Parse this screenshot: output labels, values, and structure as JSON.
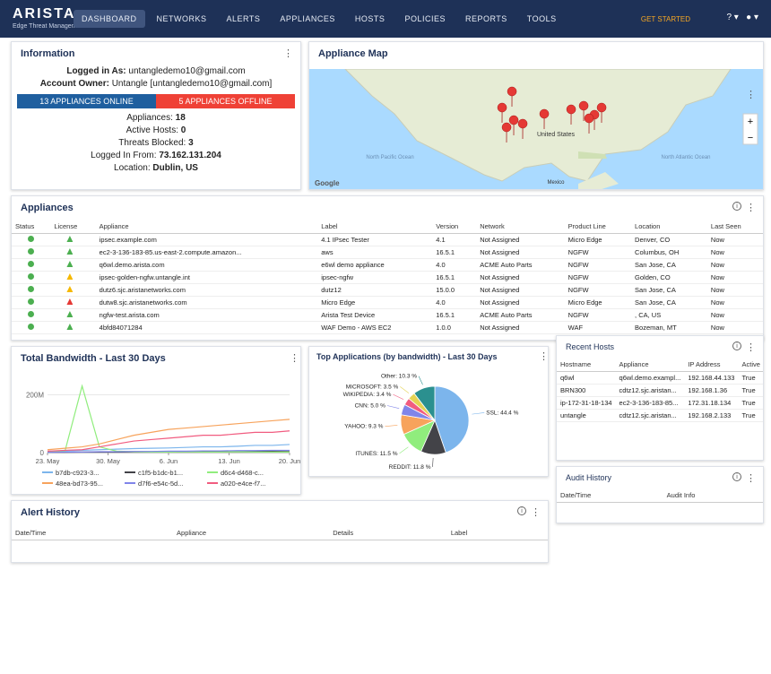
{
  "header": {
    "logo": "ARISTA",
    "tagline": "Edge Threat Management",
    "nav": [
      "DASHBOARD",
      "NETWORKS",
      "ALERTS",
      "APPLIANCES",
      "HOSTS",
      "POLICIES",
      "REPORTS",
      "TOOLS"
    ],
    "get_started": "GET STARTED"
  },
  "information": {
    "title": "Information",
    "logged_in_label": "Logged in As:",
    "logged_in_value": "untangledemo10@gmail.com",
    "owner_label": "Account Owner:",
    "owner_value": "Untangle [untangledemo10@gmail.com]",
    "online": "13 APPLIANCES ONLINE",
    "offline": "5 APPLIANCES OFFLINE",
    "stats": [
      {
        "label": "Appliances:",
        "value": 18
      },
      {
        "label": "Active Hosts:",
        "value": 0
      },
      {
        "label": "Threats Blocked:",
        "value": 3
      },
      {
        "label": "Logged In From:",
        "value": "73.162.131.204"
      },
      {
        "label": "Location:",
        "value": "Dublin, US"
      }
    ]
  },
  "map": {
    "title": "Appliance Map",
    "ocean_west": "North Pacific Ocean",
    "country": "United States",
    "mexico": "Mexico",
    "ocean_east": "North Atlantic Ocean",
    "attribution": "Google"
  },
  "appliances": {
    "title": "Appliances",
    "columns": [
      "Status",
      "License",
      "Appliance",
      "Label",
      "Version",
      "Network",
      "Product Line",
      "Location",
      "Last Seen"
    ],
    "rows": [
      {
        "status_color": "#4caf50",
        "license_color": "#4caf50",
        "cells": [
          "ipsec.example.com",
          "4.1 IPsec Tester",
          "4.1",
          "Not Assigned",
          "Micro Edge",
          "Denver, CO",
          "Now"
        ]
      },
      {
        "status_color": "#4caf50",
        "license_color": "#4caf50",
        "cells": [
          "ec2-3-136-183-85.us-east-2.compute.amazon...",
          "aws",
          "16.5.1",
          "Not Assigned",
          "NGFW",
          "Columbus, OH",
          "Now"
        ]
      },
      {
        "status_color": "#4caf50",
        "license_color": "#4caf50",
        "cells": [
          "q6wl.demo.arista.com",
          "e6wl demo appliance",
          "4.0",
          "ACME Auto Parts",
          "NGFW",
          "San Jose, CA",
          "Now"
        ]
      },
      {
        "status_color": "#4caf50",
        "license_color": "#f5b800",
        "cells": [
          "ipsec-golden-ngfw.untangle.int",
          "ipsec-ngfw",
          "16.5.1",
          "Not Assigned",
          "NGFW",
          "Golden, CO",
          "Now"
        ]
      },
      {
        "status_color": "#4caf50",
        "license_color": "#f5b800",
        "cells": [
          "dutz6.sjc.aristanetworks.com",
          "dutz12",
          "15.0.0",
          "Not Assigned",
          "NGFW",
          "San Jose, CA",
          "Now"
        ]
      },
      {
        "status_color": "#4caf50",
        "license_color": "#e53935",
        "cells": [
          "dutw8.sjc.aristanetworks.com",
          "Micro Edge",
          "4.0",
          "Not Assigned",
          "Micro Edge",
          "San Jose, CA",
          "Now"
        ]
      },
      {
        "status_color": "#4caf50",
        "license_color": "#4caf50",
        "cells": [
          "ngfw-test.arista.com",
          "Arista Test Device",
          "16.5.1",
          "ACME Auto Parts",
          "NGFW",
          ", CA, US",
          "Now"
        ]
      },
      {
        "status_color": "#4caf50",
        "license_color": "#4caf50",
        "cells": [
          "4bfd84071284",
          "WAF Demo - AWS EC2",
          "1.0.0",
          "Not Assigned",
          "WAF",
          "Bozeman, MT",
          "Now"
        ]
      }
    ]
  },
  "bandwidth_chart": {
    "type": "line",
    "title": "Total Bandwidth - Last 30 Days",
    "x": [
      0,
      2,
      4,
      6,
      8,
      10,
      12,
      14,
      16,
      18,
      20,
      22,
      24,
      26,
      28
    ],
    "xlim": [
      0,
      28
    ],
    "xticks": [
      {
        "value": 0,
        "label": "23. May"
      },
      {
        "value": 7,
        "label": "30. May"
      },
      {
        "value": 14,
        "label": "6. Jun"
      },
      {
        "value": 21,
        "label": "13. Jun"
      },
      {
        "value": 28,
        "label": "20. Jun"
      }
    ],
    "ylim": [
      0,
      260
    ],
    "yticks": [
      0,
      {
        "value": 200,
        "label": "200M"
      }
    ],
    "grid": true,
    "series": [
      {
        "name": "b7db-c923-3...",
        "color": "#7cb5ec",
        "values": [
          3,
          5,
          8,
          10,
          12,
          14,
          15,
          16,
          18,
          20,
          20,
          22,
          25,
          25,
          28
        ]
      },
      {
        "name": "c1f5-b1dc-b1...",
        "color": "#434348",
        "values": [
          1,
          1,
          2,
          2,
          2,
          3,
          3,
          3,
          4,
          4,
          4,
          5,
          5,
          5,
          6
        ]
      },
      {
        "name": "d6c4-d468-c...",
        "color": "#90ed7d",
        "values": [
          2,
          3,
          230,
          20,
          5,
          3,
          2,
          2,
          3,
          2,
          2,
          3,
          2,
          2,
          2
        ]
      },
      {
        "name": "48ea-bd73-95...",
        "color": "#f7a35c",
        "values": [
          10,
          15,
          20,
          30,
          45,
          60,
          70,
          80,
          85,
          90,
          95,
          100,
          105,
          110,
          115
        ]
      },
      {
        "name": "d7f6-e54c-5d...",
        "color": "#8085e9",
        "values": [
          1,
          2,
          2,
          3,
          3,
          4,
          4,
          5,
          5,
          6,
          6,
          7,
          7,
          8,
          8
        ]
      },
      {
        "name": "a020-e4ce-f7...",
        "color": "#f15c80",
        "values": [
          5,
          8,
          10,
          20,
          30,
          40,
          45,
          50,
          55,
          60,
          60,
          65,
          70,
          70,
          75
        ]
      }
    ]
  },
  "applications_chart": {
    "type": "pie",
    "title": "Top Applications (by bandwidth) - Last 30 Days",
    "categories": [
      "SSL",
      "REDDIT",
      "ITUNES",
      "YAHOO",
      "CNN",
      "WIKIPEDIA",
      "MICROSOFT",
      "Other"
    ],
    "values": [
      44.4,
      11.8,
      11.5,
      9.3,
      5.0,
      3.4,
      3.5,
      10.3
    ],
    "value_labels": [
      "SSL: 44.4 %",
      "REDDIT: 11.8 %",
      "ITUNES: 11.5 %",
      "YAHOO: 9.3 %",
      "CNN: 5.0 %",
      "WIKIPEDIA: 3.4 %",
      "MICROSOFT: 3.5 %",
      "Other: 10.3 %"
    ],
    "colors": [
      "#7cb5ec",
      "#434348",
      "#90ed7d",
      "#f7a35c",
      "#8085e9",
      "#f15c80",
      "#e4d354",
      "#2b908f"
    ]
  },
  "recent_hosts": {
    "title": "Recent Hosts",
    "columns": [
      "Hostname",
      "Appliance",
      "IP Address",
      "Active"
    ],
    "rows": [
      [
        "q6wl",
        "q6wl.demo.exampl...",
        "192.168.44.133",
        "True"
      ],
      [
        "BRN300",
        "cdtz12.sjc.aristan...",
        "192.168.1.36",
        "True"
      ],
      [
        "ip-172-31-18-134",
        "ec2-3-136-183-85...",
        "172.31.18.134",
        "True"
      ],
      [
        "untangle",
        "cdtz12.sjc.aristan...",
        "192.168.2.133",
        "True"
      ]
    ]
  },
  "alert_history": {
    "title": "Alert History",
    "columns": [
      "Date/Time",
      "Appliance",
      "Details",
      "Label"
    ]
  },
  "audit_history": {
    "title": "Audit History",
    "columns": [
      "Date/Time",
      "Audit Info"
    ]
  }
}
